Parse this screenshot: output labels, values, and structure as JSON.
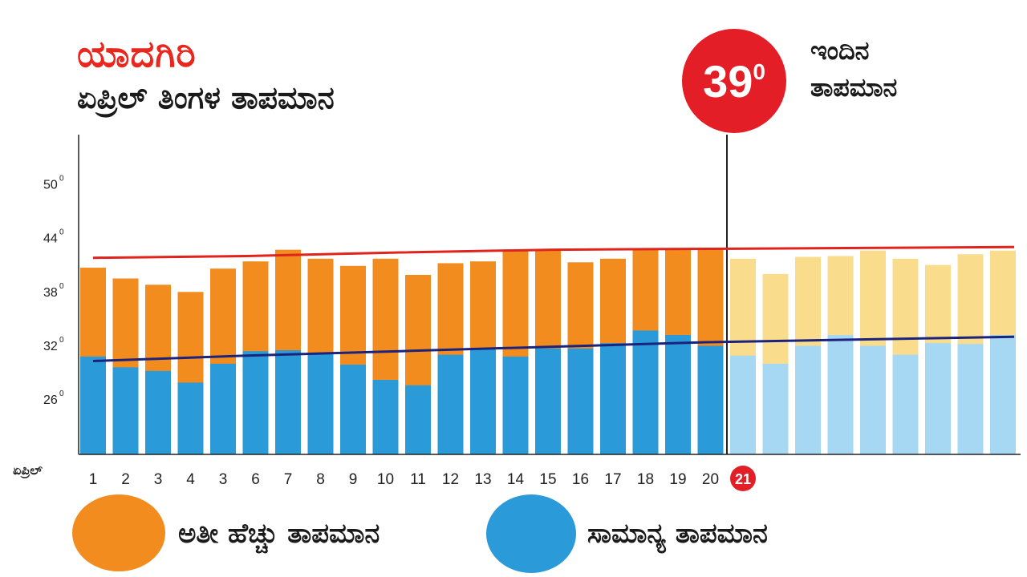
{
  "header": {
    "city": "ಯಾದಗಿರಿ",
    "subtitle": "ಏಪ್ರಿಲ್ ತಿಂಗಳ ತಾಪಮಾನ"
  },
  "today": {
    "value": "39",
    "unit": "0",
    "label_line1": "ಇಂದಿನ",
    "label_line2": "ತಾಪಮಾನ"
  },
  "colors": {
    "extreme": "#f28c1e",
    "normal": "#2a9ad8",
    "extreme_forecast": "#f9dc8c",
    "normal_forecast": "#a6d8f4",
    "max_trend": "#e0231c",
    "min_trend": "#1c237c",
    "today_marker": "#e41e26"
  },
  "legend": {
    "extreme_label": "ಅತೀ ಹೆಚ್ಚು ತಾಪಮಾನ",
    "normal_label": "ಸಾಮಾನ್ಯ ತಾಪಮಾನ"
  },
  "chart_data": {
    "type": "bar",
    "x_axis_label": "ಏಪ್ರಿಲ್",
    "y_ticks": [
      {
        "value": 26,
        "label": "26"
      },
      {
        "value": 32,
        "label": "32"
      },
      {
        "value": 38,
        "label": "38"
      },
      {
        "value": 44,
        "label": "44"
      },
      {
        "value": 50,
        "label": "50"
      }
    ],
    "tick_degree_mark": "0",
    "categories": [
      "1",
      "2",
      "3",
      "4",
      "3",
      "6",
      "7",
      "8",
      "9",
      "10",
      "11",
      "12",
      "13",
      "14",
      "15",
      "16",
      "17",
      "18",
      "19",
      "20",
      "21",
      "",
      "",
      "",
      "",
      "",
      "",
      "",
      ""
    ],
    "today_index": 20,
    "series": [
      {
        "name": "ಅತೀ ಹೆಚ್ಚು ತಾಪಮಾನ",
        "values": [
          40.3,
          39.1,
          38.4,
          37.6,
          40.2,
          41.0,
          42.3,
          41.3,
          40.5,
          41.3,
          39.5,
          40.8,
          41.0,
          42.3,
          42.3,
          40.9,
          41.3,
          42.3,
          42.3,
          42.3,
          41.3,
          39.6,
          41.5,
          41.6,
          42.2,
          41.3,
          40.6,
          41.8,
          42.2
        ]
      },
      {
        "name": "ಸಾಮಾನ್ಯ ತಾಪಮಾನ",
        "values": [
          30.4,
          29.2,
          28.8,
          27.5,
          29.6,
          31.0,
          31.1,
          30.7,
          29.5,
          27.8,
          27.2,
          30.6,
          31.3,
          30.4,
          31.3,
          31.3,
          31.9,
          33.3,
          32.8,
          31.6,
          30.5,
          29.6,
          31.6,
          32.8,
          31.6,
          30.6,
          31.9,
          31.8,
          32.8
        ]
      }
    ],
    "max_trend": [
      41.4,
      41.6,
      42.0,
      42.3,
      42.4,
      42.5,
      42.6
    ],
    "min_trend": [
      29.9,
      30.5,
      31.0,
      31.5,
      32.0,
      32.3,
      32.6
    ],
    "forecast_from_index": 20
  }
}
